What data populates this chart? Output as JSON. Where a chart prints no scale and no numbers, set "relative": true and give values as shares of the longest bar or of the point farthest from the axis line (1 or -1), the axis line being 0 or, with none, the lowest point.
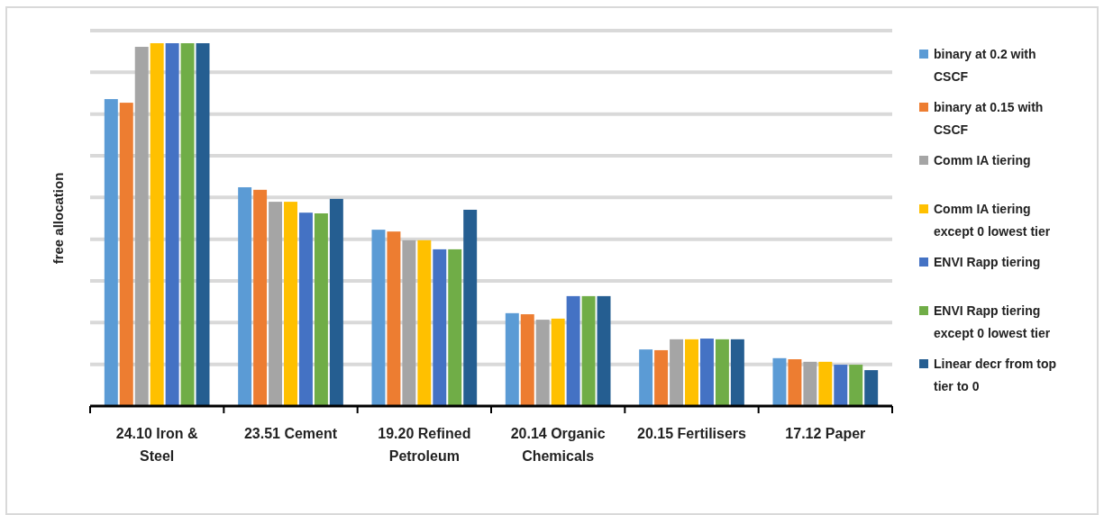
{
  "chart_data": {
    "type": "bar",
    "relative": true,
    "ylabel": "free allocation",
    "grid": true,
    "legend": "right",
    "categories": [
      "24.10 Iron & Steel",
      "23.51 Cement",
      "19.20 Refined Petroleum",
      "20.14 Organic Chemicals",
      "20.15 Fertilisers",
      "17.12 Paper"
    ],
    "series": [
      {
        "name": "binary at 0.2 with CSCF",
        "color": "#5b9bd5",
        "values": [
          0.846,
          0.603,
          0.486,
          0.256,
          0.156,
          0.132
        ]
      },
      {
        "name": "binary at 0.15 with CSCF",
        "color": "#ed7d31",
        "values": [
          0.836,
          0.596,
          0.481,
          0.253,
          0.154,
          0.129
        ]
      },
      {
        "name": "Comm IA tiering",
        "color": "#a5a5a5",
        "values": [
          0.99,
          0.563,
          0.457,
          0.238,
          0.184,
          0.122
        ]
      },
      {
        "name": "Comm IA tiering except 0 lowest tier",
        "color": "#ffc000",
        "values": [
          1,
          0.563,
          0.457,
          0.241,
          0.184,
          0.122
        ]
      },
      {
        "name": "ENVI Rapp tiering",
        "color": "#4472c4",
        "values": [
          1,
          0.533,
          0.432,
          0.303,
          0.186,
          0.114
        ]
      },
      {
        "name": "ENVI Rapp tiering except 0 lowest tier",
        "color": "#70ad47",
        "values": [
          1,
          0.531,
          0.432,
          0.303,
          0.184,
          0.114
        ]
      },
      {
        "name": "Linear decr from top tier to 0",
        "color": "#255e91",
        "values": [
          1,
          0.571,
          0.541,
          0.303,
          0.184,
          0.099
        ]
      }
    ]
  }
}
